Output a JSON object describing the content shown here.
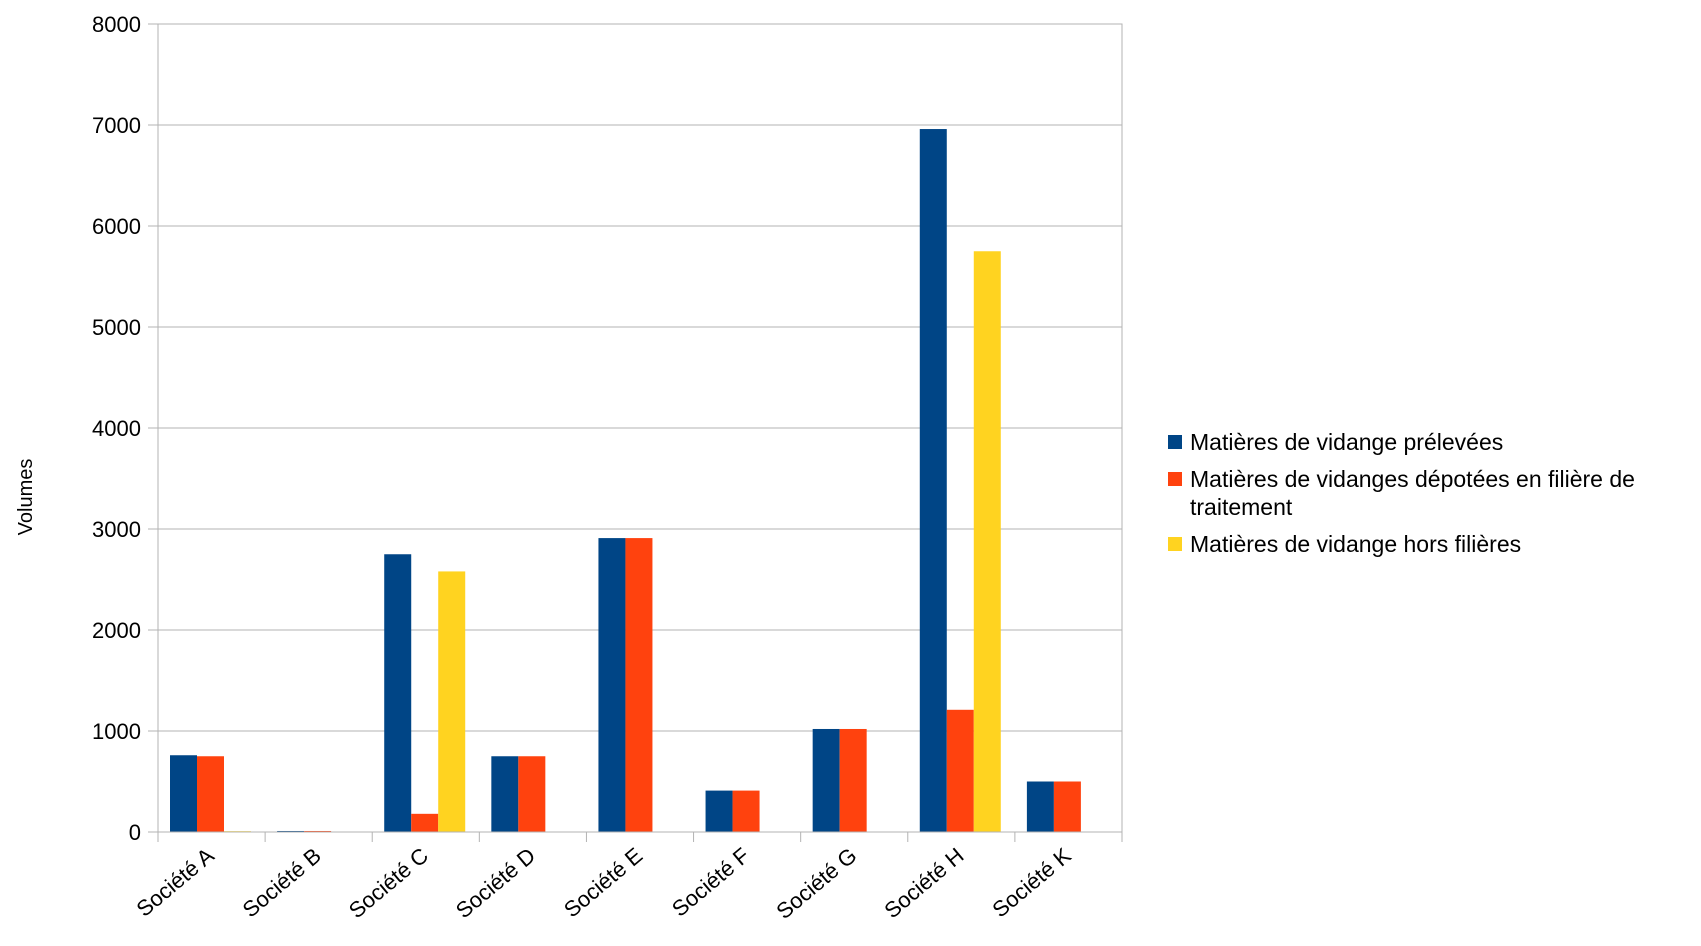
{
  "chart_data": {
    "type": "bar",
    "title": "",
    "xlabel": "",
    "ylabel": "Volumes",
    "ylim": [
      0,
      8000
    ],
    "yticks": [
      0,
      1000,
      2000,
      3000,
      4000,
      5000,
      6000,
      7000,
      8000
    ],
    "grid": true,
    "legend_position": "right",
    "categories": [
      "Société A",
      "Société B",
      "Société C",
      "Société D",
      "Société E",
      "Société F",
      "Société G",
      "Société H",
      "Société K"
    ],
    "series": [
      {
        "name": "Matières de vidange prélevées",
        "color": "#004586",
        "values": [
          760,
          10,
          2750,
          750,
          2910,
          410,
          1020,
          6960,
          500
        ]
      },
      {
        "name": "Matières de vidanges dépotées en filière de traitement",
        "color": "#ff420e",
        "values": [
          750,
          10,
          180,
          750,
          2910,
          410,
          1020,
          1210,
          500
        ]
      },
      {
        "name": "Matières de vidange hors filières",
        "color": "#ffd320",
        "values": [
          8,
          0,
          2580,
          0,
          0,
          0,
          0,
          5750,
          0
        ]
      }
    ]
  }
}
